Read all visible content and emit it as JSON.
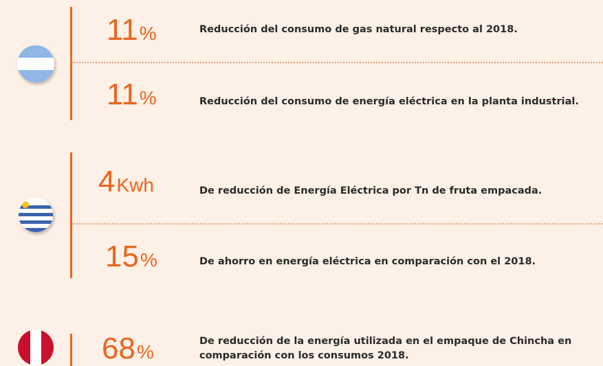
{
  "groups": [
    {
      "country_flag": "argentina",
      "stats": [
        {
          "number": "11",
          "unit": "%",
          "text": [
            "Reducción del consumo de gas natural respecto al 2018."
          ]
        },
        {
          "number": "11",
          "unit": "%",
          "text": [
            "Reducción del consumo de energía eléctrica en la planta industrial."
          ]
        }
      ]
    },
    {
      "country_flag": "uruguay",
      "stats": [
        {
          "number": "4",
          "unit": "Kwh",
          "text": [
            "De reducción de Energía Eléctrica por Tn de fruta empacada."
          ]
        },
        {
          "number": "15",
          "unit": "%",
          "text": [
            "De ahorro en energía eléctrica en comparación con el 2018."
          ]
        }
      ]
    },
    {
      "country_flag": "peru",
      "stats": [
        {
          "number": "68",
          "unit": "%",
          "text": [
            "De reducción de la energía utilizada en el empaque de Chincha en",
            "comparación con los consumos 2018."
          ]
        }
      ]
    }
  ]
}
